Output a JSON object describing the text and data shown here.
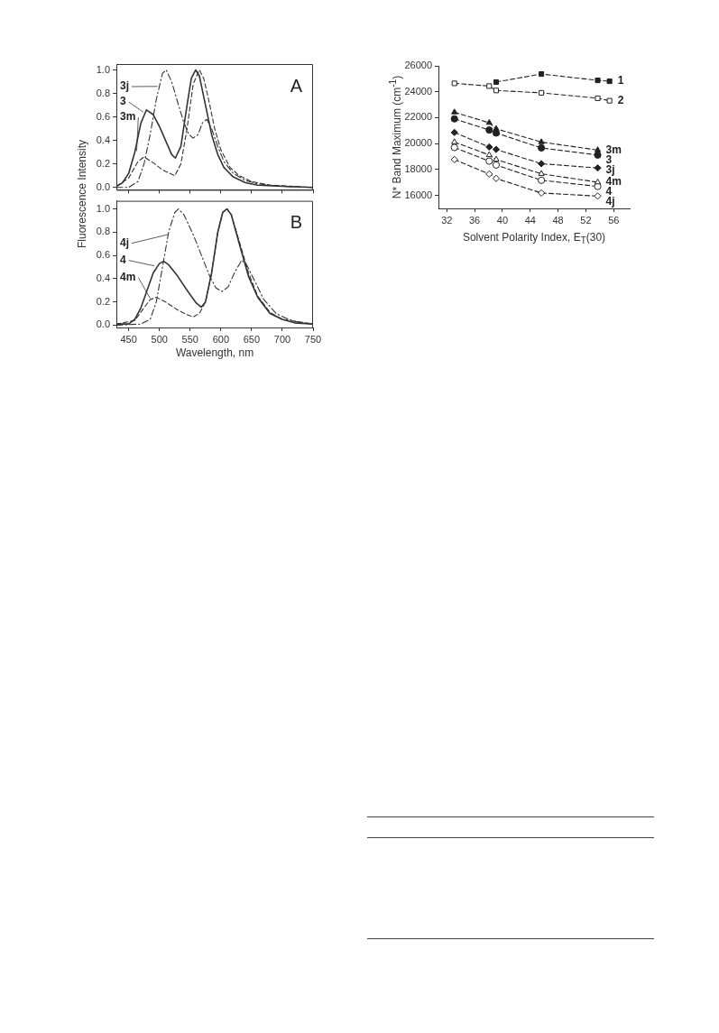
{
  "chart_data": [
    {
      "type": "line",
      "xlim": [
        430,
        750
      ],
      "ylim": [
        -0.02,
        1.05
      ],
      "xticks": [
        450,
        500,
        550,
        600,
        650,
        700,
        750
      ],
      "yticks": [
        {
          "value": 0,
          "label": "0.0"
        },
        0.2,
        0.4,
        0.6,
        {
          "value": 0.8,
          "label": "0.8"
        },
        {
          "value": 1,
          "label": "1.0"
        }
      ],
      "tick_labels": "y",
      "marker": "none",
      "series": [
        {
          "color": "#333333",
          "line_style": "solid",
          "x": [
            430,
            440,
            450,
            460,
            470,
            479,
            490,
            500,
            510,
            520,
            526,
            535,
            545,
            552,
            559,
            565,
            575,
            585,
            595,
            605,
            620,
            640,
            660,
            700,
            750
          ],
          "values": [
            0.01,
            0.04,
            0.12,
            0.3,
            0.55,
            0.66,
            0.62,
            0.52,
            0.4,
            0.28,
            0.25,
            0.35,
            0.7,
            0.93,
            1.0,
            0.95,
            0.7,
            0.45,
            0.28,
            0.17,
            0.09,
            0.04,
            0.02,
            0.01,
            0.0
          ]
        },
        {
          "color": "#333333",
          "line_style": "dashed",
          "x": [
            430,
            450,
            465,
            475,
            490,
            505,
            525,
            535,
            545,
            555,
            565,
            572,
            580,
            590,
            600,
            615,
            630,
            650,
            680,
            750
          ],
          "values": [
            0.01,
            0.08,
            0.22,
            0.26,
            0.21,
            0.15,
            0.1,
            0.2,
            0.5,
            0.88,
            1.0,
            0.93,
            0.75,
            0.5,
            0.32,
            0.17,
            0.1,
            0.05,
            0.02,
            0.0
          ]
        },
        {
          "color": "#333333",
          "line_style": "dashdot",
          "x": [
            430,
            450,
            465,
            475,
            485,
            495,
            505,
            511,
            520,
            530,
            540,
            548,
            555,
            563,
            570,
            577,
            585,
            595,
            605,
            620,
            640,
            660,
            700,
            750
          ],
          "values": [
            0.0,
            0.0,
            0.05,
            0.2,
            0.45,
            0.75,
            0.97,
            1.0,
            0.9,
            0.72,
            0.55,
            0.45,
            0.42,
            0.45,
            0.55,
            0.58,
            0.5,
            0.35,
            0.22,
            0.12,
            0.06,
            0.03,
            0.01,
            0.0
          ]
        }
      ],
      "annotations": [
        "A",
        {
          "text": "3j",
          "x": 497,
          "y": 0.86
        },
        {
          "text": "3",
          "x": 474,
          "y": 0.64
        },
        {
          "text": "3m",
          "x": 463,
          "y": 0.31
        }
      ]
    },
    {
      "type": "line",
      "xlabel": "Wavelength, nm",
      "ylabel": "Fluorescence Intensity",
      "xlim": [
        430,
        750
      ],
      "ylim": [
        -0.02,
        1.07
      ],
      "xticks": [
        450,
        500,
        550,
        600,
        650,
        700,
        750
      ],
      "yticks": [
        {
          "value": 0,
          "label": "0.0"
        },
        0.2,
        0.4,
        0.6,
        {
          "value": 0.8,
          "label": "0.8"
        },
        {
          "value": 1,
          "label": "1.0"
        }
      ],
      "marker": "none",
      "series": [
        {
          "color": "#333333",
          "line_style": "solid",
          "x": [
            430,
            450,
            460,
            470,
            480,
            490,
            500,
            507,
            515,
            530,
            545,
            560,
            568,
            575,
            585,
            595,
            603,
            610,
            617,
            630,
            645,
            660,
            680,
            700,
            720,
            750
          ],
          "values": [
            0.01,
            0.01,
            0.05,
            0.15,
            0.3,
            0.45,
            0.53,
            0.55,
            0.52,
            0.42,
            0.3,
            0.19,
            0.155,
            0.2,
            0.45,
            0.8,
            0.97,
            1.0,
            0.95,
            0.7,
            0.42,
            0.24,
            0.1,
            0.05,
            0.02,
            0.01
          ]
        },
        {
          "color": "#333333",
          "line_style": "dashed",
          "x": [
            430,
            460,
            475,
            485,
            495,
            510,
            530,
            545,
            555,
            565,
            575,
            585,
            595,
            603,
            610,
            617,
            630,
            645,
            660,
            680,
            700,
            750
          ],
          "values": [
            0.01,
            0.04,
            0.15,
            0.22,
            0.24,
            0.2,
            0.13,
            0.09,
            0.07,
            0.1,
            0.2,
            0.45,
            0.8,
            0.97,
            1.0,
            0.95,
            0.72,
            0.45,
            0.25,
            0.11,
            0.05,
            0.01
          ]
        },
        {
          "color": "#333333",
          "line_style": "dashdot",
          "x": [
            430,
            470,
            485,
            495,
            505,
            515,
            525,
            531,
            540,
            555,
            570,
            582,
            592,
            602,
            612,
            622,
            634,
            642,
            655,
            670,
            690,
            710,
            730,
            750
          ],
          "values": [
            0.0,
            0.01,
            0.05,
            0.2,
            0.5,
            0.8,
            0.97,
            1.0,
            0.95,
            0.78,
            0.58,
            0.42,
            0.32,
            0.29,
            0.33,
            0.45,
            0.56,
            0.52,
            0.38,
            0.22,
            0.1,
            0.05,
            0.02,
            0.01
          ]
        }
      ],
      "annotations": [
        "B",
        {
          "text": "4j",
          "x": 514,
          "y": 0.78
        },
        {
          "text": "4",
          "x": 492,
          "y": 0.51
        },
        {
          "text": "4m",
          "x": 485,
          "y": 0.23
        }
      ]
    },
    {
      "type": "line",
      "xlabel": "Solvent Polarity Index, E$_{T}$(30)",
      "ylabel": "N* Band Maximum (cm$^{-1}$)",
      "xlim": [
        30.8,
        58.3
      ],
      "ylim": [
        15000,
        26000
      ],
      "xticks": [
        32,
        36,
        40,
        44,
        48,
        52,
        56
      ],
      "yticks": [
        16000,
        18000,
        20000,
        22000,
        24000,
        26000
      ],
      "line_style": "dashed",
      "series": [
        {
          "name": "1",
          "color": "#222222",
          "marker": "square",
          "x": [
            39.1,
            45.6,
            53.7,
            55.4
          ],
          "values": [
            24750,
            25370,
            24880,
            24810
          ]
        },
        {
          "name": "2",
          "color": "#222222",
          "marker": "square-open",
          "x": [
            33.1,
            38.1,
            39.1,
            45.6,
            53.7,
            55.4
          ],
          "values": [
            24650,
            24440,
            24100,
            23920,
            23500,
            23310
          ]
        },
        {
          "name": "3m",
          "color": "#222222",
          "marker": "triangle",
          "x": [
            33.1,
            38.1,
            39.1,
            45.6,
            53.7
          ],
          "values": [
            22420,
            21610,
            21140,
            20120,
            19500
          ]
        },
        {
          "name": "3",
          "color": "#222222",
          "marker": "circle",
          "x": [
            33.1,
            38.1,
            39.1,
            45.6,
            53.7
          ],
          "values": [
            21910,
            21050,
            20820,
            19670,
            19120
          ]
        },
        {
          "name": "3j",
          "color": "#222222",
          "marker": "diamond",
          "x": [
            33.1,
            38.1,
            39.1,
            45.6,
            53.7
          ],
          "values": [
            20860,
            19740,
            19550,
            18450,
            18120
          ]
        },
        {
          "name": "4m",
          "color": "#222222",
          "marker": "triangle-open",
          "x": [
            33.1,
            38.1,
            39.1,
            45.6,
            53.7
          ],
          "values": [
            20120,
            19120,
            18770,
            17670,
            17020
          ]
        },
        {
          "name": "4",
          "color": "#222222",
          "marker": "circle-open",
          "x": [
            33.1,
            38.1,
            39.1,
            45.6,
            53.7
          ],
          "values": [
            19700,
            18650,
            18350,
            17170,
            16700
          ]
        },
        {
          "name": "4j",
          "color": "#222222",
          "marker": "diamond-open",
          "x": [
            33.1,
            38.1,
            39.1,
            45.6,
            53.7
          ],
          "values": [
            18770,
            17650,
            17310,
            16190,
            15950
          ]
        }
      ]
    }
  ]
}
